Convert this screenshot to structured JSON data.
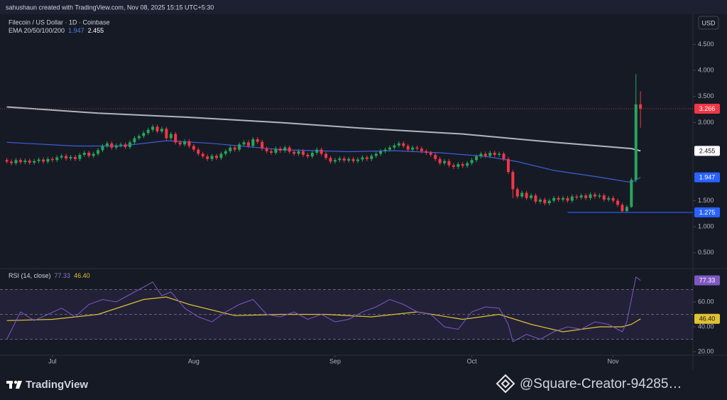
{
  "header": {
    "credit": "sahushaun created with TradingView.com, Nov 08, 2025 15:15 UTC+5:30",
    "brand": "TradingView",
    "watermark": "@Square-Creator-94285…"
  },
  "chart_data": {
    "type": "candlestick",
    "title": "Filecoin / US Dollar · 1D · Coinbase",
    "currency": "USD",
    "up_color": "#26a65b",
    "down_color": "#f23645",
    "open": [
      2.28,
      2.25,
      2.22,
      2.28,
      2.24,
      2.27,
      2.23,
      2.26,
      2.29,
      2.25,
      2.3,
      2.28,
      2.33,
      2.36,
      2.31,
      2.34,
      2.3,
      2.38,
      2.42,
      2.36,
      2.4,
      2.47,
      2.55,
      2.6,
      2.52,
      2.56,
      2.58,
      2.53,
      2.62,
      2.7,
      2.74,
      2.8,
      2.86,
      2.92,
      2.83,
      2.88,
      2.7,
      2.78,
      2.62,
      2.58,
      2.64,
      2.55,
      2.48,
      2.4,
      2.35,
      2.3,
      2.36,
      2.32,
      2.4,
      2.45,
      2.52,
      2.48,
      2.58,
      2.62,
      2.55,
      2.68,
      2.63,
      2.5,
      2.45,
      2.42,
      2.5,
      2.46,
      2.52,
      2.44,
      2.4,
      2.45,
      2.38,
      2.35,
      2.42,
      2.48,
      2.4,
      2.32,
      2.25,
      2.28,
      2.31,
      2.27,
      2.3,
      2.26,
      2.29,
      2.33,
      2.3,
      2.36,
      2.4,
      2.45,
      2.48,
      2.52,
      2.56,
      2.6,
      2.55,
      2.48,
      2.52,
      2.5,
      2.45,
      2.42,
      2.38,
      2.3,
      2.22,
      2.26,
      2.18,
      2.15,
      2.2,
      2.17,
      2.22,
      2.28,
      2.35,
      2.4,
      2.36,
      2.42,
      2.38,
      2.4,
      2.3,
      2.05,
      1.72,
      1.58,
      1.65,
      1.55,
      1.6,
      1.48,
      1.52,
      1.45,
      1.5,
      1.55,
      1.52,
      1.55,
      1.5,
      1.58,
      1.56,
      1.6,
      1.55,
      1.62,
      1.58,
      1.6,
      1.52,
      1.55,
      1.5,
      1.42,
      1.3,
      1.38,
      1.9,
      3.35
    ],
    "high": [
      2.32,
      2.29,
      2.32,
      2.32,
      2.31,
      2.31,
      2.3,
      2.33,
      2.33,
      2.34,
      2.34,
      2.37,
      2.4,
      2.4,
      2.38,
      2.38,
      2.42,
      2.46,
      2.46,
      2.44,
      2.51,
      2.59,
      2.64,
      2.64,
      2.6,
      2.62,
      2.62,
      2.66,
      2.74,
      2.78,
      2.84,
      2.9,
      2.96,
      2.96,
      2.92,
      2.92,
      2.82,
      2.82,
      2.66,
      2.68,
      2.68,
      2.59,
      2.52,
      2.44,
      2.39,
      2.4,
      2.4,
      2.44,
      2.49,
      2.56,
      2.56,
      2.62,
      2.66,
      2.66,
      2.72,
      2.72,
      2.67,
      2.54,
      2.49,
      2.54,
      2.54,
      2.56,
      2.56,
      2.48,
      2.49,
      2.49,
      2.42,
      2.46,
      2.52,
      2.52,
      2.44,
      2.36,
      2.32,
      2.35,
      2.35,
      2.34,
      2.34,
      2.33,
      2.37,
      2.37,
      2.4,
      2.44,
      2.49,
      2.52,
      2.56,
      2.6,
      2.64,
      2.64,
      2.59,
      2.56,
      2.56,
      2.54,
      2.49,
      2.46,
      2.42,
      2.34,
      2.3,
      2.3,
      2.22,
      2.24,
      2.24,
      2.26,
      2.32,
      2.39,
      2.44,
      2.44,
      2.46,
      2.46,
      2.44,
      2.44,
      2.34,
      2.09,
      1.76,
      1.69,
      1.69,
      1.64,
      1.64,
      1.56,
      1.56,
      1.54,
      1.59,
      1.59,
      1.59,
      1.59,
      1.62,
      1.62,
      1.64,
      1.64,
      1.66,
      1.66,
      1.64,
      1.64,
      1.59,
      1.59,
      1.54,
      1.46,
      1.42,
      1.94,
      3.93,
      3.6
    ],
    "low": [
      2.21,
      2.18,
      2.18,
      2.2,
      2.2,
      2.19,
      2.19,
      2.22,
      2.21,
      2.21,
      2.24,
      2.24,
      2.29,
      2.27,
      2.27,
      2.26,
      2.26,
      2.34,
      2.32,
      2.32,
      2.36,
      2.43,
      2.51,
      2.48,
      2.48,
      2.52,
      2.49,
      2.49,
      2.58,
      2.66,
      2.7,
      2.76,
      2.82,
      2.79,
      2.79,
      2.66,
      2.66,
      2.58,
      2.54,
      2.54,
      2.51,
      2.44,
      2.36,
      2.31,
      2.26,
      2.26,
      2.28,
      2.28,
      2.36,
      2.41,
      2.44,
      2.44,
      2.54,
      2.51,
      2.51,
      2.59,
      2.46,
      2.41,
      2.38,
      2.38,
      2.42,
      2.42,
      2.4,
      2.36,
      2.36,
      2.34,
      2.31,
      2.31,
      2.38,
      2.36,
      2.28,
      2.21,
      2.21,
      2.24,
      2.23,
      2.23,
      2.22,
      2.22,
      2.25,
      2.26,
      2.26,
      2.32,
      2.36,
      2.41,
      2.44,
      2.48,
      2.52,
      2.51,
      2.44,
      2.44,
      2.46,
      2.41,
      2.38,
      2.34,
      2.26,
      2.18,
      2.18,
      2.14,
      2.11,
      2.11,
      2.13,
      2.13,
      2.18,
      2.24,
      2.31,
      2.32,
      2.32,
      2.34,
      2.34,
      2.26,
      2.01,
      1.55,
      1.54,
      1.54,
      1.51,
      1.51,
      1.44,
      1.44,
      1.41,
      1.41,
      1.46,
      1.48,
      1.48,
      1.46,
      1.46,
      1.52,
      1.52,
      1.51,
      1.51,
      1.54,
      1.54,
      1.48,
      1.48,
      1.46,
      1.38,
      1.275,
      1.28,
      1.36,
      1.85,
      2.9
    ],
    "close": [
      2.25,
      2.22,
      2.28,
      2.24,
      2.27,
      2.23,
      2.26,
      2.29,
      2.25,
      2.3,
      2.28,
      2.33,
      2.36,
      2.31,
      2.34,
      2.3,
      2.38,
      2.42,
      2.36,
      2.4,
      2.47,
      2.55,
      2.6,
      2.52,
      2.56,
      2.58,
      2.53,
      2.62,
      2.7,
      2.74,
      2.8,
      2.86,
      2.92,
      2.83,
      2.88,
      2.7,
      2.78,
      2.62,
      2.58,
      2.64,
      2.55,
      2.48,
      2.4,
      2.35,
      2.3,
      2.36,
      2.32,
      2.4,
      2.45,
      2.52,
      2.48,
      2.58,
      2.62,
      2.55,
      2.68,
      2.63,
      2.5,
      2.45,
      2.42,
      2.5,
      2.46,
      2.52,
      2.44,
      2.4,
      2.45,
      2.38,
      2.35,
      2.42,
      2.48,
      2.4,
      2.32,
      2.25,
      2.28,
      2.31,
      2.27,
      2.3,
      2.26,
      2.29,
      2.33,
      2.3,
      2.36,
      2.4,
      2.45,
      2.48,
      2.52,
      2.56,
      2.6,
      2.55,
      2.48,
      2.52,
      2.5,
      2.45,
      2.42,
      2.38,
      2.3,
      2.22,
      2.26,
      2.18,
      2.15,
      2.2,
      2.17,
      2.22,
      2.28,
      2.35,
      2.4,
      2.36,
      2.42,
      2.38,
      2.4,
      2.3,
      2.05,
      1.72,
      1.58,
      1.65,
      1.55,
      1.6,
      1.48,
      1.52,
      1.45,
      1.5,
      1.55,
      1.52,
      1.55,
      1.5,
      1.58,
      1.56,
      1.6,
      1.55,
      1.62,
      1.58,
      1.6,
      1.52,
      1.55,
      1.5,
      1.42,
      1.3,
      1.38,
      1.9,
      3.35,
      3.266
    ],
    "xlim": [
      -1.5,
      150.5
    ],
    "xticks": [
      {
        "value": 10,
        "label": "Jul"
      },
      {
        "value": 41,
        "label": "Aug"
      },
      {
        "value": 72,
        "label": "Sep"
      },
      {
        "value": 102,
        "label": "Oct"
      },
      {
        "value": 133,
        "label": "Nov"
      }
    ],
    "ylim": [
      0.21,
      5.08
    ],
    "yticks": [
      {
        "value": 0.5,
        "label": "0.500"
      },
      {
        "value": 1,
        "label": "1.000"
      },
      {
        "value": 1.5,
        "label": "1.500"
      },
      {
        "value": 3,
        "label": "3.000"
      },
      {
        "value": 3.5,
        "label": "3.500"
      },
      {
        "value": 4,
        "label": "4.000"
      },
      {
        "value": 4.5,
        "label": "4.500"
      }
    ],
    "ema_legend": "EMA 20/50/100/200",
    "lines": [
      {
        "color": "#3d5fd6",
        "x": [
          0,
          15,
          25,
          35,
          45,
          60,
          75,
          85,
          95,
          105,
          112,
          120,
          130,
          137,
          139
        ],
        "values": [
          2.62,
          2.55,
          2.55,
          2.65,
          2.6,
          2.48,
          2.44,
          2.46,
          2.42,
          2.35,
          2.25,
          2.08,
          1.95,
          1.85,
          1.947
        ]
      },
      {
        "color": "#b2b5be",
        "x": [
          0,
          20,
          40,
          60,
          80,
          100,
          120,
          137,
          139
        ],
        "values": [
          3.3,
          3.18,
          3.1,
          3.0,
          2.88,
          2.78,
          2.62,
          2.5,
          2.455
        ]
      }
    ],
    "support_level": 1.275,
    "support_color": "#2962ff",
    "rsi": {
      "title": "RSI (14, close)",
      "color": "#7e57c2",
      "x": [
        0,
        3,
        6,
        9,
        12,
        15,
        18,
        21,
        24,
        27,
        30,
        32,
        34,
        36,
        39,
        42,
        45,
        48,
        51,
        54,
        57,
        60,
        63,
        66,
        69,
        72,
        75,
        78,
        81,
        84,
        87,
        90,
        93,
        96,
        99,
        102,
        105,
        108,
        110,
        111,
        114,
        117,
        120,
        123,
        126,
        129,
        132,
        135,
        136,
        137,
        138,
        139
      ],
      "values": [
        30,
        52,
        45,
        50,
        55,
        48,
        58,
        62,
        60,
        66,
        72,
        76,
        65,
        68,
        55,
        48,
        44,
        52,
        58,
        62,
        50,
        48,
        52,
        46,
        50,
        44,
        46,
        52,
        56,
        62,
        58,
        52,
        50,
        40,
        38,
        52,
        56,
        55,
        42,
        28,
        34,
        30,
        36,
        40,
        38,
        44,
        42,
        36,
        44,
        62,
        80,
        77.33
      ],
      "ma": {
        "color": "#e0c232",
        "x": [
          0,
          10,
          20,
          30,
          35,
          40,
          50,
          60,
          70,
          80,
          90,
          100,
          108,
          115,
          122,
          130,
          135,
          137,
          139
        ],
        "values": [
          45,
          46,
          50,
          62,
          64,
          58,
          49,
          50,
          50,
          48,
          52,
          46,
          50,
          42,
          36,
          40,
          40,
          42,
          46.4
        ],
        "value_labels": {
          "18": "46.40"
        }
      },
      "levels": [
        70,
        50,
        30
      ],
      "ylim": [
        17.14,
        85.71
      ],
      "yticks": [
        {
          "value": 20,
          "label": "20.00"
        },
        {
          "value": 40,
          "label": "40.00"
        },
        {
          "value": 60,
          "label": "60.00"
        }
      ]
    }
  }
}
